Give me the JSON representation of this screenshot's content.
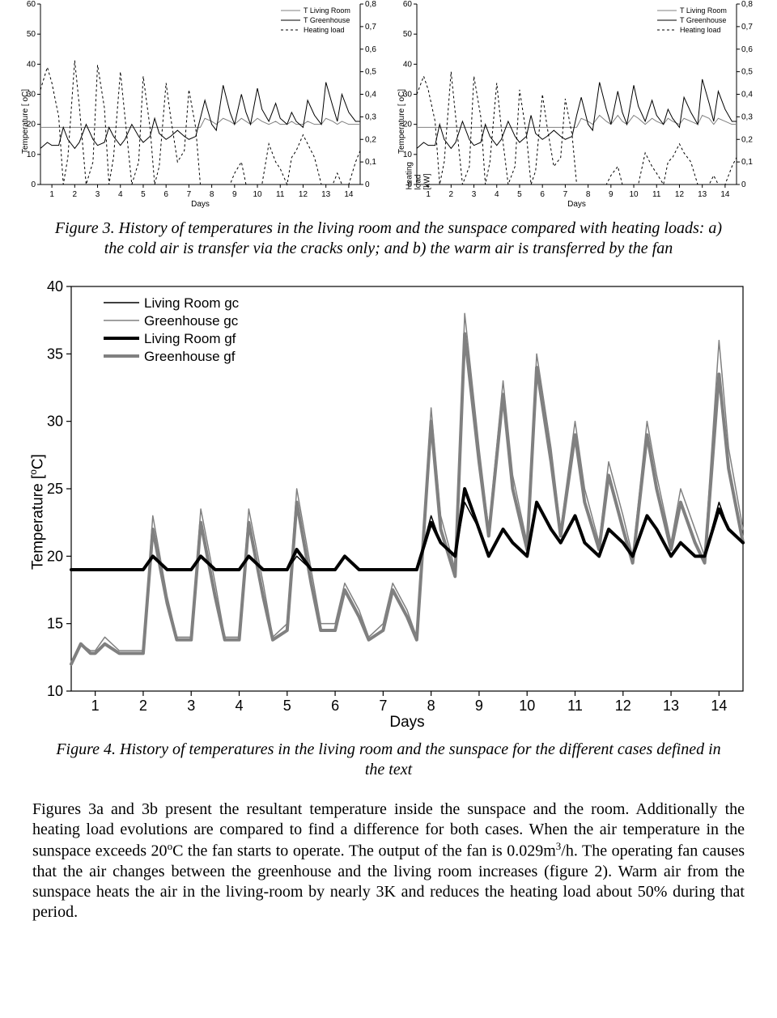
{
  "small_chart_common": {
    "type": "line",
    "left_axis": {
      "label": "Temperature [ oC]",
      "ticks": [
        0,
        10,
        20,
        30,
        40,
        50,
        60
      ],
      "lim": [
        0,
        60
      ],
      "fontsize": 10
    },
    "right_axis": {
      "label": "Heating load [kW]",
      "ticks": [
        0,
        0.1,
        0.2,
        0.3,
        0.4,
        0.5,
        0.6,
        0.7,
        0.8
      ],
      "tick_labels": [
        "0",
        "0,1",
        "0,2",
        "0,3",
        "0,4",
        "0,5",
        "0,6",
        "0,7",
        "0,8"
      ],
      "lim": [
        0,
        0.8
      ],
      "fontsize": 10
    },
    "x_axis": {
      "label": "Days",
      "ticks": [
        1,
        2,
        3,
        4,
        5,
        6,
        7,
        8,
        9,
        10,
        11,
        12,
        13,
        14
      ],
      "lim": [
        0.5,
        14.5
      ],
      "fontsize": 10
    },
    "legend": {
      "items": [
        "T Living Room",
        "T Greenhouse",
        "Heating load"
      ],
      "position": "top-right",
      "fontsize": 9
    },
    "colors": {
      "living": "#808080",
      "greenhouse": "#000000",
      "heating": "#000000"
    },
    "styles": {
      "living": "solid-thin",
      "greenhouse": "solid-thin",
      "heating": "dashed"
    },
    "line_width": 1,
    "background_color": "#ffffff",
    "grid": false
  },
  "chart_a": {
    "x": [
      0.5,
      0.8,
      1,
      1.3,
      1.5,
      1.7,
      2,
      2.2,
      2.5,
      2.8,
      3,
      3.3,
      3.5,
      3.7,
      4,
      4.2,
      4.5,
      4.8,
      5,
      5.3,
      5.5,
      5.7,
      6,
      6.2,
      6.5,
      6.8,
      7,
      7.3,
      7.5,
      7.7,
      8,
      8.2,
      8.5,
      8.8,
      9,
      9.3,
      9.5,
      9.7,
      10,
      10.2,
      10.5,
      10.8,
      11,
      11.3,
      11.5,
      11.7,
      12,
      12.2,
      12.5,
      12.8,
      13,
      13.3,
      13.5,
      13.7,
      14,
      14.3,
      14.5
    ],
    "living": [
      19,
      19,
      19,
      19,
      19,
      19,
      19,
      19,
      19,
      19,
      19,
      19,
      19,
      19,
      19,
      19,
      19,
      19,
      19,
      19,
      19,
      19,
      19,
      19,
      19,
      19,
      19,
      19,
      19,
      22,
      21,
      20,
      22,
      21,
      20,
      22,
      21,
      20,
      22,
      21,
      20,
      21,
      20,
      20,
      21,
      20,
      20,
      21,
      20,
      20,
      22,
      21,
      20,
      21,
      20,
      20,
      20
    ],
    "greenhouse": [
      12,
      14,
      13,
      13,
      19,
      15,
      12,
      14,
      20,
      15,
      13,
      14,
      19,
      16,
      13,
      15,
      20,
      16,
      14,
      16,
      22,
      17,
      15,
      16,
      18,
      16,
      15,
      16,
      22,
      28,
      20,
      18,
      33,
      24,
      20,
      30,
      24,
      20,
      32,
      25,
      21,
      27,
      22,
      20,
      24,
      21,
      19,
      28,
      23,
      20,
      34,
      26,
      21,
      30,
      24,
      21,
      21
    ],
    "heating_kw": [
      0.42,
      0.52,
      0.45,
      0.3,
      0.0,
      0.12,
      0.55,
      0.35,
      0.0,
      0.1,
      0.53,
      0.34,
      0.0,
      0.12,
      0.5,
      0.3,
      0.0,
      0.1,
      0.48,
      0.25,
      0.0,
      0.08,
      0.45,
      0.3,
      0.1,
      0.15,
      0.42,
      0.25,
      0.0,
      0.0,
      0.0,
      0.0,
      0.0,
      0.0,
      0.05,
      0.1,
      0.0,
      0.0,
      0.0,
      0.0,
      0.18,
      0.1,
      0.07,
      0.0,
      0.12,
      0.15,
      0.22,
      0.18,
      0.12,
      0.0,
      0.0,
      0.0,
      0.05,
      0.0,
      0.0,
      0.1,
      0.15
    ]
  },
  "chart_b": {
    "x": [
      0.5,
      0.8,
      1,
      1.3,
      1.5,
      1.7,
      2,
      2.2,
      2.5,
      2.8,
      3,
      3.3,
      3.5,
      3.7,
      4,
      4.2,
      4.5,
      4.8,
      5,
      5.3,
      5.5,
      5.7,
      6,
      6.2,
      6.5,
      6.8,
      7,
      7.3,
      7.5,
      7.7,
      8,
      8.2,
      8.5,
      8.8,
      9,
      9.3,
      9.5,
      9.7,
      10,
      10.2,
      10.5,
      10.8,
      11,
      11.3,
      11.5,
      11.7,
      12,
      12.2,
      12.5,
      12.8,
      13,
      13.3,
      13.5,
      13.7,
      14,
      14.3,
      14.5
    ],
    "living": [
      19,
      19,
      19,
      19,
      19,
      19,
      19,
      19,
      19,
      19,
      19,
      19,
      19,
      19,
      19,
      19,
      19,
      19,
      19,
      19,
      19,
      19,
      19,
      19,
      19,
      19,
      19,
      19,
      19,
      22,
      21,
      20,
      23,
      21,
      20,
      23,
      21,
      20,
      23,
      22,
      20,
      22,
      21,
      20,
      22,
      21,
      20,
      22,
      21,
      20,
      23,
      22,
      20,
      22,
      21,
      20,
      20
    ],
    "greenhouse": [
      12,
      14,
      13,
      13,
      20,
      15,
      12,
      14,
      21,
      15,
      13,
      14,
      20,
      16,
      13,
      15,
      21,
      16,
      14,
      16,
      23,
      17,
      15,
      16,
      18,
      16,
      15,
      16,
      23,
      29,
      20,
      18,
      34,
      25,
      20,
      31,
      24,
      20,
      33,
      26,
      21,
      28,
      23,
      20,
      25,
      22,
      19,
      29,
      24,
      20,
      35,
      27,
      21,
      31,
      25,
      21,
      21
    ],
    "heating_kw": [
      0.4,
      0.48,
      0.42,
      0.28,
      0.0,
      0.1,
      0.5,
      0.3,
      0.0,
      0.08,
      0.48,
      0.3,
      0.0,
      0.1,
      0.45,
      0.25,
      0.0,
      0.08,
      0.42,
      0.22,
      0.0,
      0.06,
      0.4,
      0.26,
      0.08,
      0.12,
      0.38,
      0.22,
      0.0,
      0.0,
      0.0,
      0.0,
      0.0,
      0.0,
      0.04,
      0.08,
      0.0,
      0.0,
      0.0,
      0.0,
      0.14,
      0.08,
      0.05,
      0.0,
      0.1,
      0.12,
      0.18,
      0.14,
      0.1,
      0.0,
      0.0,
      0.0,
      0.04,
      0.0,
      0.0,
      0.08,
      0.12
    ]
  },
  "caption3": "Figure 3. History of temperatures in the living room and the sunspace compared with heating loads: a) the cold air is transfer via the cracks only; and  b) the warm air is transferred by the fan",
  "big_chart": {
    "type": "line",
    "y_axis": {
      "label": "Temperature [oC]",
      "ticks": [
        10,
        15,
        20,
        25,
        30,
        35,
        40
      ],
      "lim": [
        10,
        40
      ],
      "fontsize": 18
    },
    "x_axis": {
      "label": "Days",
      "ticks": [
        1,
        2,
        3,
        4,
        5,
        6,
        7,
        8,
        9,
        10,
        11,
        12,
        13,
        14
      ],
      "lim": [
        0.5,
        14.5
      ],
      "fontsize": 18
    },
    "legend": {
      "items": [
        "Living Room gc",
        "Greenhouse gc",
        "Living Room gf",
        "Greenhouse gf"
      ],
      "position": "upper-left",
      "fontsize": 17
    },
    "colors": {
      "lr_gc": "#000000",
      "gh_gc": "#808080",
      "lr_gf": "#000000",
      "gh_gf": "#808080"
    },
    "line_widths": {
      "lr_gc": 1.5,
      "gh_gc": 1.5,
      "lr_gf": 4,
      "gh_gf": 4
    },
    "background_color": "#ffffff",
    "grid": false,
    "x": [
      0.5,
      0.7,
      0.9,
      1.0,
      1.2,
      1.5,
      1.7,
      2.0,
      2.2,
      2.5,
      2.7,
      3.0,
      3.2,
      3.5,
      3.7,
      4.0,
      4.2,
      4.5,
      4.7,
      5.0,
      5.2,
      5.5,
      5.7,
      6.0,
      6.2,
      6.5,
      6.7,
      7.0,
      7.2,
      7.5,
      7.7,
      8.0,
      8.2,
      8.5,
      8.7,
      9.0,
      9.2,
      9.5,
      9.7,
      10.0,
      10.2,
      10.5,
      10.7,
      11.0,
      11.2,
      11.5,
      11.7,
      12.0,
      12.2,
      12.5,
      12.7,
      13.0,
      13.2,
      13.5,
      13.7,
      14.0,
      14.2,
      14.5
    ],
    "lr_gc": [
      19,
      19,
      19,
      19,
      19,
      19,
      19,
      19,
      20,
      19,
      19,
      19,
      20,
      19,
      19,
      19,
      20,
      19,
      19,
      19,
      20,
      19,
      19,
      19,
      20,
      19,
      19,
      19,
      19,
      19,
      19,
      23,
      21,
      20,
      24,
      22,
      20,
      22,
      21,
      20,
      24,
      22,
      21,
      23,
      21,
      20,
      22,
      21,
      20,
      23,
      22,
      20,
      21,
      20,
      20,
      24,
      22,
      21
    ],
    "gh_gc": [
      12,
      13.5,
      13,
      13,
      14,
      13,
      13,
      13,
      23,
      17,
      14,
      14,
      23.5,
      18,
      14,
      14,
      23.5,
      18,
      14,
      15,
      25,
      19,
      15,
      15,
      18,
      16,
      14,
      15,
      18,
      16,
      14,
      31,
      23,
      19,
      38,
      28,
      22,
      33,
      26,
      21,
      35,
      28,
      22,
      30,
      25,
      21,
      27,
      23,
      20,
      30,
      26,
      21,
      25,
      22,
      20,
      36,
      28,
      22
    ],
    "lr_gf": [
      19,
      19,
      19,
      19,
      19,
      19,
      19,
      19,
      20,
      19,
      19,
      19,
      20,
      19,
      19,
      19,
      20,
      19,
      19,
      19,
      20.5,
      19,
      19,
      19,
      20,
      19,
      19,
      19,
      19,
      19,
      19,
      22.5,
      21,
      20,
      25,
      22,
      20,
      22,
      21,
      20,
      24,
      22,
      21,
      23,
      21,
      20,
      22,
      21,
      20,
      23,
      22,
      20,
      21,
      20,
      20,
      23.5,
      22,
      21
    ],
    "gh_gf": [
      12,
      13.5,
      12.8,
      12.8,
      13.5,
      12.8,
      12.8,
      12.8,
      22,
      16.5,
      13.8,
      13.8,
      22.5,
      17,
      13.8,
      13.8,
      22.5,
      17,
      13.8,
      14.5,
      24,
      18,
      14.5,
      14.5,
      17.5,
      15.5,
      13.8,
      14.5,
      17.5,
      15.5,
      13.8,
      30,
      22,
      18.5,
      36.5,
      27,
      21.5,
      32,
      25,
      20.5,
      34,
      27,
      21.5,
      29,
      24,
      20.5,
      26,
      22,
      19.5,
      29,
      25,
      20.5,
      24,
      21,
      19.5,
      33.5,
      26.5,
      21
    ]
  },
  "caption4": "Figure 4. History of temperatures in the living room and the sunspace for the different cases defined in the text",
  "paragraph": "Figures 3a and 3b present the resultant temperature inside the sunspace and the room. Additionally the heating load evolutions are compared to find a difference for both cases. When the air temperature in the sunspace exceeds 20oC the fan starts to operate. The output of the fan is 0.029m3/h. The operating fan causes that the air changes between the greenhouse and the living room increases (figure 2). Warm air from the sunspace heats the air in the living-room by nearly 3K and reduces the heating load about 50% during that period."
}
